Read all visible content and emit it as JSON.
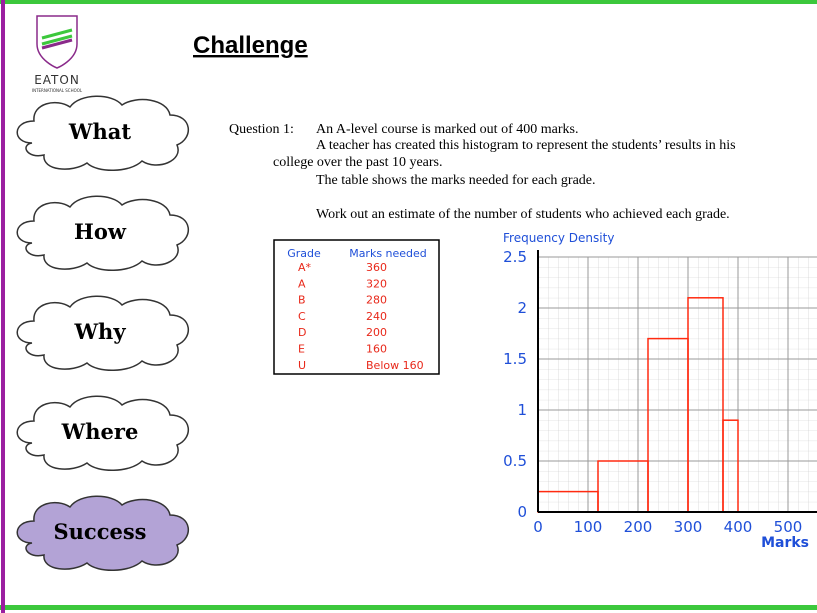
{
  "logo": {
    "name": "EATON",
    "subtitle": "INTERNATIONAL SCHOOL"
  },
  "title": "Challenge",
  "nav": [
    "What",
    "How",
    "Why",
    "Where",
    "Success"
  ],
  "question": {
    "label": "Question 1:",
    "lines": [
      "An A-level course is marked out of 400 marks.",
      "A teacher has created this histogram to represent the students’ results in his",
      "college over the past 10 years.",
      "The table shows the marks needed for each grade.",
      "Work out an estimate of the number of students who achieved each grade."
    ]
  },
  "table": {
    "header": [
      "Grade",
      "Marks needed"
    ],
    "rows": [
      [
        "A*",
        "360"
      ],
      [
        "A",
        "320"
      ],
      [
        "B",
        "280"
      ],
      [
        "C",
        "240"
      ],
      [
        "D",
        "200"
      ],
      [
        "E",
        "160"
      ],
      [
        "U",
        "Below 160"
      ]
    ]
  },
  "chart_data": {
    "type": "histogram",
    "y_label": "Frequency Density",
    "x_label": "Marks",
    "bins": [
      0,
      120,
      220,
      300,
      370,
      400
    ],
    "counts": [
      0.2,
      0.5,
      1.7,
      2.1,
      0.9
    ],
    "color": "#ff2a10",
    "xlim": [
      0,
      560
    ],
    "xticks": [
      0,
      100,
      200,
      300,
      400,
      500
    ],
    "ylim": [
      0,
      2.5
    ],
    "yticks": [
      0,
      0.5,
      1,
      1.5,
      2,
      2.5
    ],
    "grid": true
  }
}
